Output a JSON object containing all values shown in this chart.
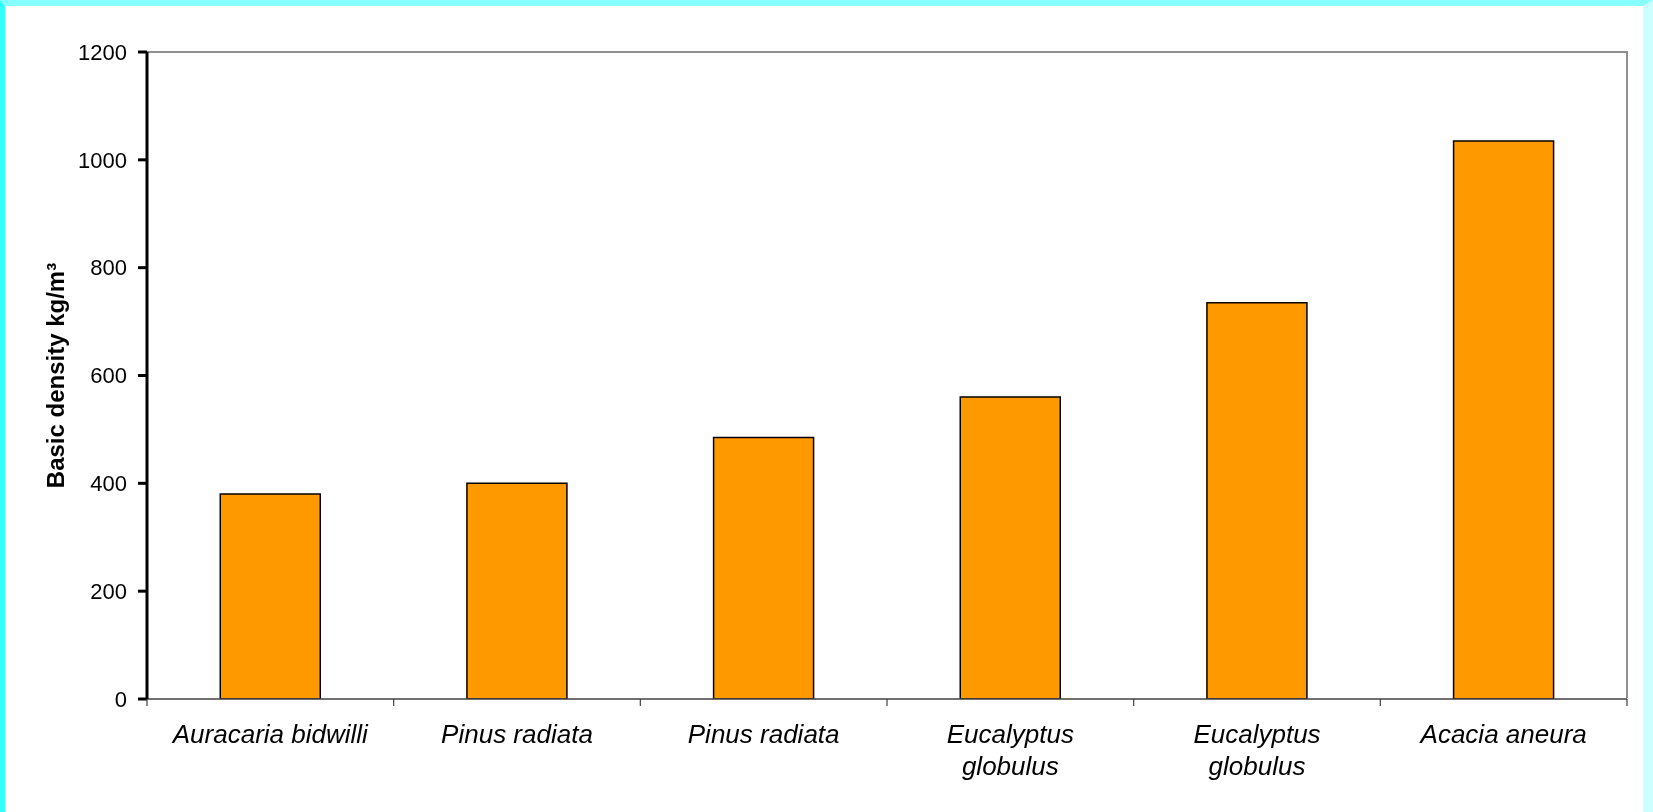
{
  "chart_data": {
    "type": "bar",
    "ylabel": "Basic density kg/m³",
    "categories": [
      "Auracaria bidwilli",
      "Pinus radiata",
      "Pinus radiata",
      "Eucalyptus globulus",
      "Eucalyptus globulus",
      "Acacia aneura"
    ],
    "values": [
      380,
      400,
      485,
      560,
      735,
      1035
    ],
    "color": "#ff9900",
    "ylim": [
      0,
      1200
    ],
    "yticks": [
      0,
      200,
      400,
      600,
      800,
      1000,
      1200
    ]
  }
}
